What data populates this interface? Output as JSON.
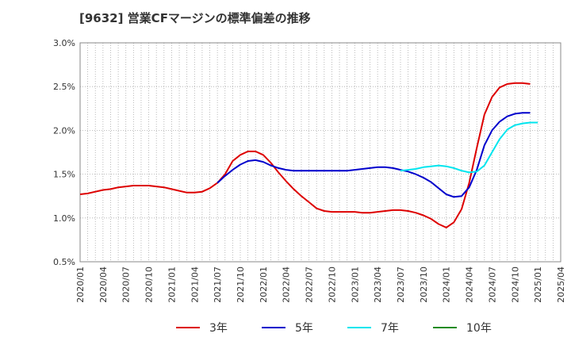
{
  "chart_data": {
    "type": "line",
    "title": "[9632]  営業CFマージンの標準偏差の推移",
    "x_ticks": [
      "2020/01",
      "2020/04",
      "2020/07",
      "2020/10",
      "2021/01",
      "2021/04",
      "2021/07",
      "2021/10",
      "2022/01",
      "2022/04",
      "2022/07",
      "2022/10",
      "2023/01",
      "2023/04",
      "2023/07",
      "2023/10",
      "2024/01",
      "2024/04",
      "2024/07",
      "2024/10",
      "2025/01",
      "2025/04"
    ],
    "y_ticks": [
      "0.5%",
      "1.0%",
      "1.5%",
      "2.0%",
      "2.5%",
      "3.0%"
    ],
    "ylim": [
      0.5,
      3.0
    ],
    "y_unit": "%",
    "x_range_months": [
      "2020-01",
      "2025-04"
    ],
    "grid": true,
    "legend_position": "bottom",
    "series": [
      {
        "name": "3年",
        "color": "#dd0000",
        "start": "2020-01",
        "values": [
          1.27,
          1.28,
          1.3,
          1.32,
          1.33,
          1.35,
          1.36,
          1.37,
          1.37,
          1.37,
          1.36,
          1.35,
          1.33,
          1.31,
          1.29,
          1.29,
          1.3,
          1.34,
          1.4,
          1.5,
          1.65,
          1.72,
          1.76,
          1.76,
          1.72,
          1.63,
          1.52,
          1.42,
          1.33,
          1.25,
          1.18,
          1.11,
          1.08,
          1.07,
          1.07,
          1.07,
          1.07,
          1.06,
          1.06,
          1.07,
          1.08,
          1.09,
          1.09,
          1.08,
          1.06,
          1.03,
          0.99,
          0.93,
          0.89,
          0.95,
          1.1,
          1.4,
          1.8,
          2.18,
          2.38,
          2.49,
          2.53,
          2.54,
          2.54,
          2.53
        ]
      },
      {
        "name": "5年",
        "color": "#0000cc",
        "start": "2021-07",
        "values": [
          1.4,
          1.48,
          1.55,
          1.61,
          1.65,
          1.66,
          1.64,
          1.6,
          1.57,
          1.55,
          1.54,
          1.54,
          1.54,
          1.54,
          1.54,
          1.54,
          1.54,
          1.54,
          1.55,
          1.56,
          1.57,
          1.58,
          1.58,
          1.57,
          1.55,
          1.53,
          1.5,
          1.46,
          1.41,
          1.34,
          1.27,
          1.24,
          1.25,
          1.35,
          1.55,
          1.83,
          2.0,
          2.1,
          2.16,
          2.19,
          2.2,
          2.2
        ]
      },
      {
        "name": "7年",
        "color": "#00e5ee",
        "start": "2023-07",
        "values": [
          1.54,
          1.55,
          1.56,
          1.58,
          1.59,
          1.6,
          1.59,
          1.57,
          1.54,
          1.52,
          1.53,
          1.6,
          1.75,
          1.9,
          2.01,
          2.06,
          2.08,
          2.09,
          2.09
        ]
      },
      {
        "name": "10年",
        "color": "#228b22",
        "start": "2025-01",
        "values": []
      }
    ]
  }
}
